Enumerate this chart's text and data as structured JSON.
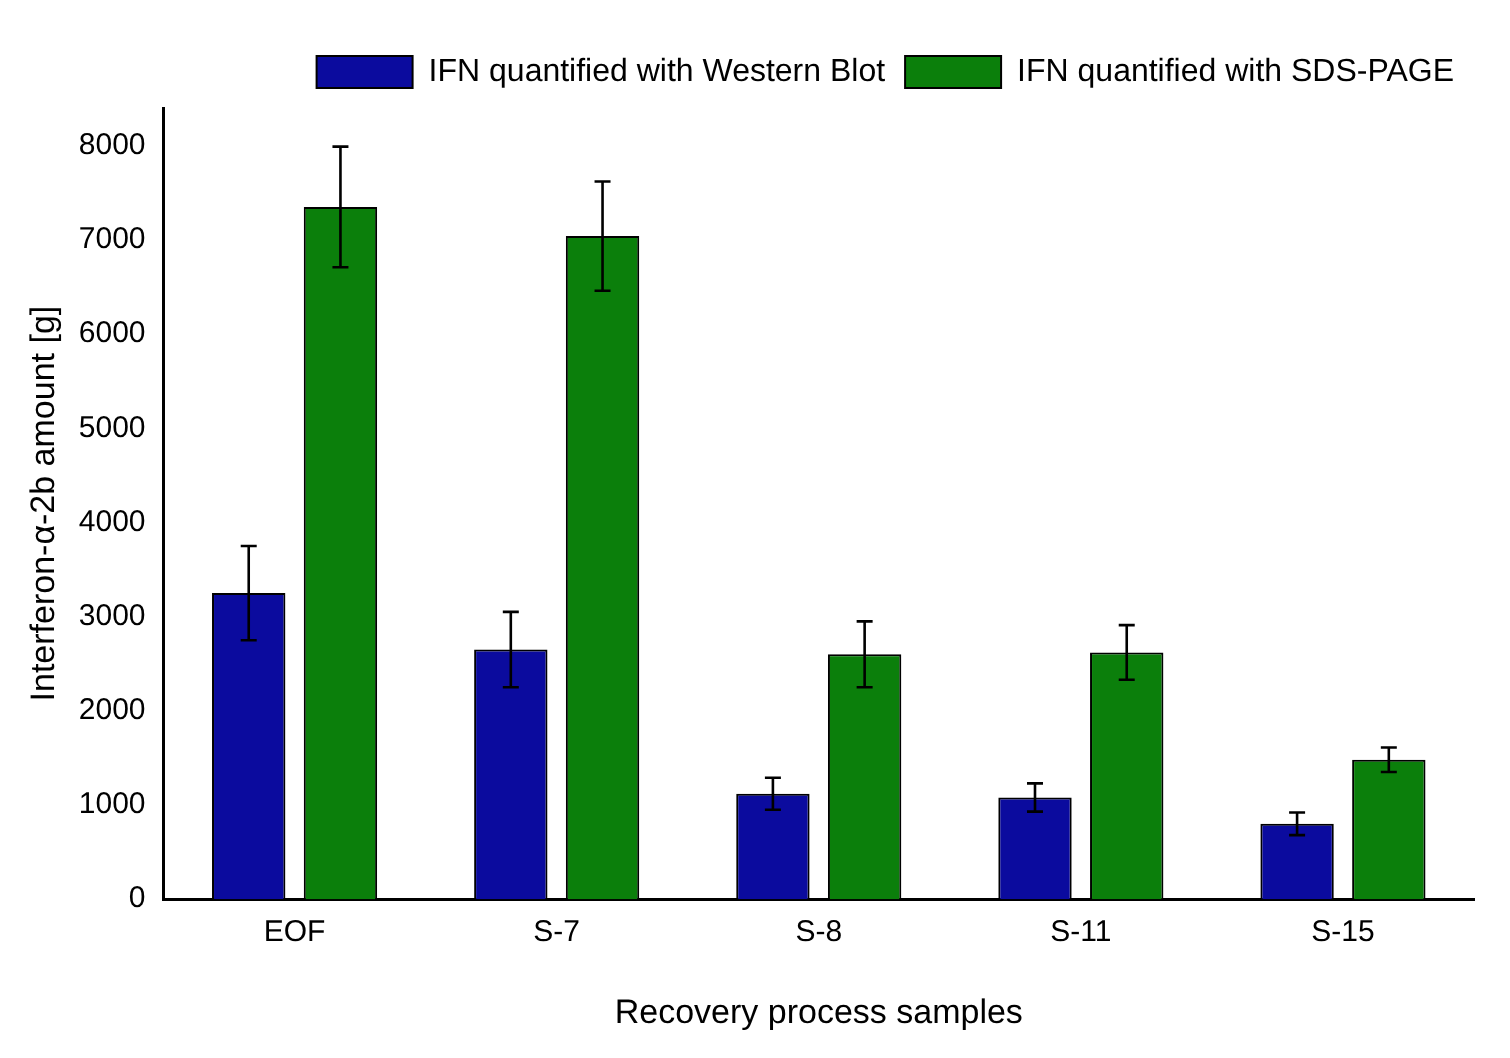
{
  "chart_data": {
    "type": "bar",
    "xlabel": "Recovery process samples",
    "ylabel": "Interferon-α-2b amount [g]",
    "categories": [
      "EOF",
      "S-7",
      "S-8",
      "S-11",
      "S-15"
    ],
    "series": [
      {
        "name": "IFN quantified with Western Blot",
        "color": "#0b0b9e",
        "values": [
          3250,
          2650,
          1120,
          1080,
          800
        ],
        "errors": [
          500,
          400,
          170,
          150,
          120
        ]
      },
      {
        "name": "IFN quantified with SDS-PAGE",
        "color": "#0b7f0b",
        "values": [
          7350,
          7040,
          2600,
          2620,
          1480
        ],
        "errors": [
          640,
          580,
          350,
          290,
          130
        ]
      }
    ],
    "ylim": [
      0,
      8400
    ],
    "yticks": [
      0,
      1000,
      2000,
      3000,
      4000,
      5000,
      6000,
      7000,
      8000
    ],
    "grid": false,
    "legend": "top right"
  }
}
